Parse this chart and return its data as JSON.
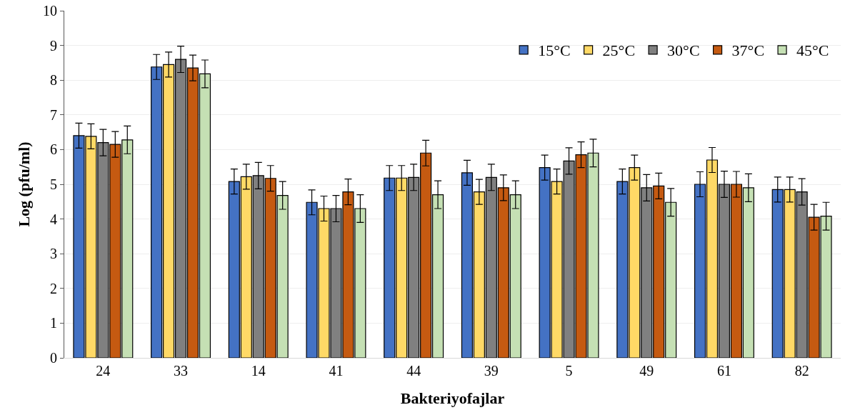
{
  "chart_data": {
    "type": "bar",
    "xlabel": "Bakteriyofajlar",
    "ylabel": "Log (pfu/ml)",
    "categories": [
      "24",
      "33",
      "14",
      "41",
      "44",
      "39",
      "5",
      "49",
      "61",
      "82"
    ],
    "series": [
      {
        "name": "15°C",
        "color": "#4472c4",
        "values": [
          6.4,
          8.38,
          5.08,
          4.48,
          5.18,
          5.33,
          5.48,
          5.08,
          5.0,
          4.85
        ],
        "errors": [
          0.36,
          0.36,
          0.36,
          0.36,
          0.36,
          0.36,
          0.36,
          0.36,
          0.36,
          0.36
        ]
      },
      {
        "name": "25°C",
        "color": "#ffd966",
        "values": [
          6.38,
          8.45,
          5.22,
          4.3,
          5.18,
          4.78,
          5.08,
          5.48,
          5.7,
          4.85
        ],
        "errors": [
          0.36,
          0.36,
          0.36,
          0.36,
          0.36,
          0.36,
          0.36,
          0.36,
          0.36,
          0.36
        ]
      },
      {
        "name": "30°C",
        "color": "#808080",
        "values": [
          6.2,
          8.6,
          5.25,
          4.3,
          5.2,
          5.2,
          5.67,
          4.9,
          5.0,
          4.78
        ],
        "errors": [
          0.38,
          0.38,
          0.38,
          0.38,
          0.38,
          0.38,
          0.38,
          0.38,
          0.38,
          0.38
        ]
      },
      {
        "name": "37°C",
        "color": "#c55a11",
        "values": [
          6.15,
          8.35,
          5.17,
          4.78,
          5.9,
          4.9,
          5.85,
          4.95,
          5.0,
          4.05
        ],
        "errors": [
          0.37,
          0.37,
          0.37,
          0.37,
          0.37,
          0.37,
          0.37,
          0.37,
          0.37,
          0.37
        ]
      },
      {
        "name": "45°C",
        "color": "#c5e0b4",
        "values": [
          6.28,
          8.18,
          4.68,
          4.3,
          4.7,
          4.7,
          5.9,
          4.48,
          4.9,
          4.08
        ],
        "errors": [
          0.4,
          0.4,
          0.4,
          0.4,
          0.4,
          0.4,
          0.4,
          0.4,
          0.4,
          0.4
        ]
      }
    ],
    "ylim": [
      0,
      10
    ],
    "yticks": [
      0,
      1,
      2,
      3,
      4,
      5,
      6,
      7,
      8,
      9,
      10
    ],
    "grid": "y",
    "legend": "top right"
  }
}
